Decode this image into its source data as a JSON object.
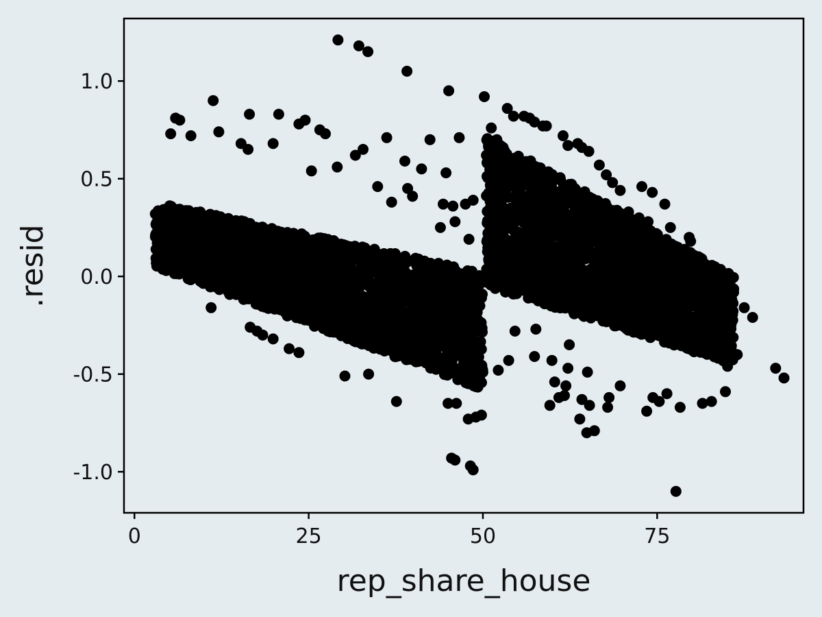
{
  "chart_data": {
    "type": "scatter",
    "xlabel": "rep_share_house",
    "ylabel": ".resid",
    "xlim": [
      -1.5,
      96
    ],
    "ylim": [
      -1.21,
      1.32
    ],
    "x_ticks": [
      0,
      25,
      50,
      75
    ],
    "x_tick_labels": [
      "0",
      "25",
      "50",
      "75"
    ],
    "y_ticks": [
      -1.0,
      -0.5,
      0.0,
      0.5,
      1.0
    ],
    "y_tick_labels": [
      "-1.0",
      "-0.5",
      "0.0",
      "0.5",
      "1.0"
    ],
    "grid": false,
    "legend": "none",
    "colors": {
      "background": "#e5ecf0",
      "point": "#000000",
      "frame": "#000000"
    },
    "note_on_density": "Two dense bands of thousands of points: one from x≈3 to x≈50 sloping down from about +0.35 to -0.45, another from x≈50 to x≈85 sloping down from about +0.55 to -0.40.",
    "clusters": [
      {
        "x_range": [
          3,
          50
        ],
        "y_top": [
          0.38,
          0.02
        ],
        "y_bottom": [
          0.05,
          -0.58
        ]
      },
      {
        "x_range": [
          50.5,
          86
        ],
        "y_top": [
          0.72,
          0.0
        ],
        "y_bottom": [
          -0.05,
          -0.45
        ]
      }
    ],
    "points": [
      [
        29.2,
        1.21
      ],
      [
        32.2,
        1.18
      ],
      [
        33.5,
        1.15
      ],
      [
        39.1,
        1.05
      ],
      [
        45.1,
        0.95
      ],
      [
        50.2,
        0.92
      ],
      [
        11.3,
        0.9
      ],
      [
        5.9,
        0.81
      ],
      [
        6.5,
        0.8
      ],
      [
        16.5,
        0.83
      ],
      [
        20.7,
        0.83
      ],
      [
        23.6,
        0.78
      ],
      [
        24.5,
        0.8
      ],
      [
        26.6,
        0.75
      ],
      [
        27.4,
        0.73
      ],
      [
        12.1,
        0.74
      ],
      [
        5.2,
        0.73
      ],
      [
        8.1,
        0.72
      ],
      [
        42.4,
        0.7
      ],
      [
        36.2,
        0.71
      ],
      [
        46.6,
        0.71
      ],
      [
        19.9,
        0.68
      ],
      [
        15.3,
        0.68
      ],
      [
        16.3,
        0.65
      ],
      [
        32.8,
        0.65
      ],
      [
        31.7,
        0.62
      ],
      [
        38.8,
        0.59
      ],
      [
        41.2,
        0.55
      ],
      [
        44.7,
        0.53
      ],
      [
        29.1,
        0.56
      ],
      [
        25.4,
        0.54
      ],
      [
        39.2,
        0.45
      ],
      [
        39.9,
        0.41
      ],
      [
        34.9,
        0.46
      ],
      [
        36.9,
        0.38
      ],
      [
        44.3,
        0.37
      ],
      [
        45.7,
        0.36
      ],
      [
        47.5,
        0.37
      ],
      [
        48.6,
        0.39
      ],
      [
        46.0,
        0.28
      ],
      [
        43.9,
        0.25
      ],
      [
        48.0,
        0.19
      ],
      [
        3.0,
        0.32
      ],
      [
        4.1,
        0.31
      ],
      [
        4.9,
        0.29
      ],
      [
        5.3,
        0.14
      ],
      [
        4.4,
        0.15
      ],
      [
        6.6,
        0.25
      ],
      [
        11.0,
        -0.16
      ],
      [
        16.6,
        -0.26
      ],
      [
        17.6,
        -0.28
      ],
      [
        18.4,
        -0.3
      ],
      [
        19.9,
        -0.32
      ],
      [
        22.2,
        -0.37
      ],
      [
        23.6,
        -0.39
      ],
      [
        30.2,
        -0.51
      ],
      [
        33.6,
        -0.5
      ],
      [
        37.6,
        -0.64
      ],
      [
        45.0,
        -0.65
      ],
      [
        46.2,
        -0.65
      ],
      [
        47.9,
        -0.73
      ],
      [
        49.0,
        -0.72
      ],
      [
        49.8,
        -0.71
      ],
      [
        45.5,
        -0.93
      ],
      [
        46.0,
        -0.94
      ],
      [
        48.2,
        -0.97
      ],
      [
        48.6,
        -0.99
      ],
      [
        52.2,
        -0.48
      ],
      [
        53.7,
        -0.43
      ],
      [
        54.6,
        -0.28
      ],
      [
        57.4,
        -0.41
      ],
      [
        57.6,
        -0.27
      ],
      [
        59.6,
        -0.66
      ],
      [
        59.9,
        -0.43
      ],
      [
        60.3,
        -0.54
      ],
      [
        60.9,
        -0.62
      ],
      [
        61.7,
        -0.61
      ],
      [
        61.9,
        -0.56
      ],
      [
        62.2,
        -0.47
      ],
      [
        62.4,
        -0.35
      ],
      [
        63.9,
        -0.73
      ],
      [
        64.2,
        -0.63
      ],
      [
        64.9,
        -0.8
      ],
      [
        65.0,
        -0.49
      ],
      [
        66.0,
        -0.79
      ],
      [
        65.3,
        -0.66
      ],
      [
        67.9,
        -0.67
      ],
      [
        68.1,
        -0.62
      ],
      [
        69.7,
        -0.56
      ],
      [
        73.5,
        -0.69
      ],
      [
        74.4,
        -0.62
      ],
      [
        75.3,
        -0.64
      ],
      [
        76.4,
        -0.6
      ],
      [
        77.7,
        -1.1
      ],
      [
        78.3,
        -0.67
      ],
      [
        81.5,
        -0.65
      ],
      [
        82.8,
        -0.64
      ],
      [
        84.8,
        -0.59
      ],
      [
        85.1,
        -0.46
      ],
      [
        86.5,
        -0.4
      ],
      [
        83.6,
        -0.35
      ],
      [
        84.7,
        -0.15
      ],
      [
        85.3,
        -0.05
      ],
      [
        83.9,
        -0.05
      ],
      [
        82.9,
        -0.08
      ],
      [
        81.4,
        0.09
      ],
      [
        79.8,
        0.18
      ],
      [
        87.5,
        -0.16
      ],
      [
        88.7,
        -0.21
      ],
      [
        92.0,
        -0.47
      ],
      [
        93.2,
        -0.52
      ],
      [
        53.5,
        0.86
      ],
      [
        54.4,
        0.82
      ],
      [
        55.9,
        0.82
      ],
      [
        56.7,
        0.81
      ],
      [
        57.4,
        0.79
      ],
      [
        58.6,
        0.77
      ],
      [
        59.1,
        0.77
      ],
      [
        61.5,
        0.72
      ],
      [
        62.2,
        0.67
      ],
      [
        63.6,
        0.68
      ],
      [
        64.2,
        0.66
      ],
      [
        65.2,
        0.64
      ],
      [
        66.7,
        0.57
      ],
      [
        67.7,
        0.52
      ],
      [
        68.6,
        0.48
      ],
      [
        69.7,
        0.44
      ],
      [
        72.8,
        0.46
      ],
      [
        74.3,
        0.43
      ],
      [
        76.1,
        0.37
      ],
      [
        70.9,
        0.33
      ],
      [
        72.4,
        0.3
      ],
      [
        73.7,
        0.28
      ],
      [
        76.9,
        0.25
      ],
      [
        79.6,
        0.2
      ],
      [
        51.2,
        0.76
      ],
      [
        52.0,
        0.7
      ],
      [
        52.9,
        0.66
      ],
      [
        50.5,
        0.62
      ],
      [
        51.5,
        0.55
      ]
    ]
  }
}
